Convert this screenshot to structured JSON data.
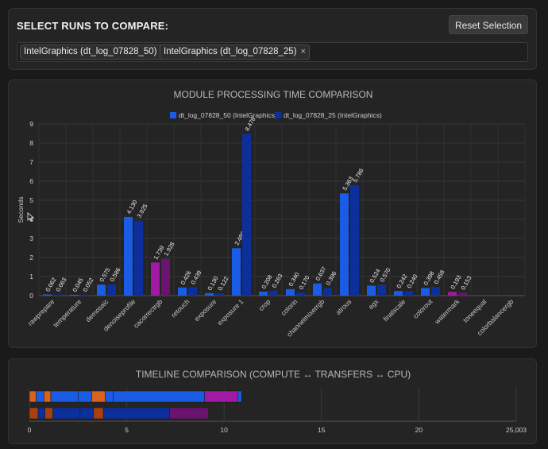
{
  "select": {
    "title": "SELECT RUNS TO COMPARE:",
    "reset_label": "Reset Selection",
    "chips": [
      {
        "label": "IntelGraphics (dt_log_07828_50)",
        "remove": "×"
      },
      {
        "label": "IntelGraphics (dt_log_07828_25)",
        "remove": "×"
      }
    ]
  },
  "chart_data": [
    {
      "type": "bar",
      "title": "MODULE PROCESSING TIME COMPARISON",
      "ylabel": "Seconds",
      "ylim": [
        0,
        9
      ],
      "yticks": [
        "0",
        "1",
        "2",
        "3",
        "4",
        "5",
        "6",
        "7",
        "8",
        "9"
      ],
      "legend_position": "top",
      "categories": [
        "rawprepare",
        "temperature",
        "demosaic",
        "denoiseprofile",
        "cacorrectrgb",
        "retouch",
        "exposure",
        "exposure 1",
        "crop",
        "colorin",
        "channelmixerrgb",
        "atrous",
        "agx",
        "finalscale",
        "colorout",
        "watermark",
        "toneequal",
        "colorbalancergb"
      ],
      "series": [
        {
          "name": "dt_log_07828_50 (IntelGraphics)",
          "color": "#1b5ce6",
          "values": [
            0.062,
            0.045,
            0.575,
            4.13,
            1.739,
            0.426,
            0.13,
            2.489,
            0.208,
            0.34,
            0.637,
            5.363,
            0.524,
            0.242,
            0.398,
            0.193,
            null,
            null
          ],
          "labels": [
            "0.062",
            "0.045",
            "0.575",
            "4.130",
            "1.739",
            "0.426",
            "0.130",
            "2.489",
            "0.208",
            "0.340",
            "0.637",
            "5.363",
            "0.524",
            "0.242",
            "0.398",
            "0.193",
            "",
            ""
          ]
        },
        {
          "name": "dt_log_07828_25 (IntelGraphics)",
          "color": "#0d2f9c",
          "values": [
            0.063,
            0.052,
            0.586,
            3.925,
            1.928,
            0.439,
            0.122,
            8.478,
            0.263,
            0.17,
            0.396,
            5.786,
            0.57,
            0.24,
            0.458,
            0.153,
            null,
            null
          ],
          "labels": [
            "0.063",
            "0.052",
            "0.586",
            "3.925",
            "1.928",
            "0.439",
            "0.122",
            "8.478",
            "0.263",
            "0.170",
            "0.396",
            "5.786",
            "0.570",
            "0.240",
            "0.458",
            "0.153",
            "",
            ""
          ]
        }
      ],
      "highlight": {
        "categories": [
          "cacorrectrgb",
          "watermark"
        ],
        "colors": [
          "#a11aa3",
          "#6a1470"
        ]
      }
    },
    {
      "type": "bar",
      "title": "TIMELINE COMPARISON (COMPUTE ↔ TRANSFERS ↔ CPU)",
      "orientation": "horizontal-stacked",
      "xlim": [
        0,
        25.003
      ],
      "xticks": [
        "0",
        "5",
        "10",
        "15",
        "20",
        "25,003"
      ],
      "rows": [
        {
          "segments": [
            {
              "start": 0.0,
              "end": 0.35,
              "color": "#d9621c"
            },
            {
              "start": 0.35,
              "end": 0.75,
              "color": "#1b5ce6"
            },
            {
              "start": 0.75,
              "end": 1.1,
              "color": "#d9621c"
            },
            {
              "start": 1.1,
              "end": 2.5,
              "color": "#1b5ce6"
            },
            {
              "start": 2.5,
              "end": 3.2,
              "color": "#1b5ce6"
            },
            {
              "start": 3.2,
              "end": 3.9,
              "color": "#d9621c"
            },
            {
              "start": 3.9,
              "end": 4.3,
              "color": "#1b5ce6"
            },
            {
              "start": 4.3,
              "end": 9.0,
              "color": "#1b5ce6"
            },
            {
              "start": 9.0,
              "end": 10.7,
              "color": "#a11aa3"
            },
            {
              "start": 10.7,
              "end": 10.9,
              "color": "#1b5ce6"
            }
          ]
        },
        {
          "segments": [
            {
              "start": 0.0,
              "end": 0.45,
              "color": "#a8400f"
            },
            {
              "start": 0.45,
              "end": 0.8,
              "color": "#0d2f9c"
            },
            {
              "start": 0.8,
              "end": 1.2,
              "color": "#a8400f"
            },
            {
              "start": 1.2,
              "end": 2.6,
              "color": "#0d2f9c"
            },
            {
              "start": 2.6,
              "end": 3.3,
              "color": "#0d2f9c"
            },
            {
              "start": 3.3,
              "end": 3.8,
              "color": "#a8400f"
            },
            {
              "start": 3.8,
              "end": 7.2,
              "color": "#0d2f9c"
            },
            {
              "start": 7.2,
              "end": 9.2,
              "color": "#6a1470"
            }
          ]
        }
      ]
    }
  ]
}
